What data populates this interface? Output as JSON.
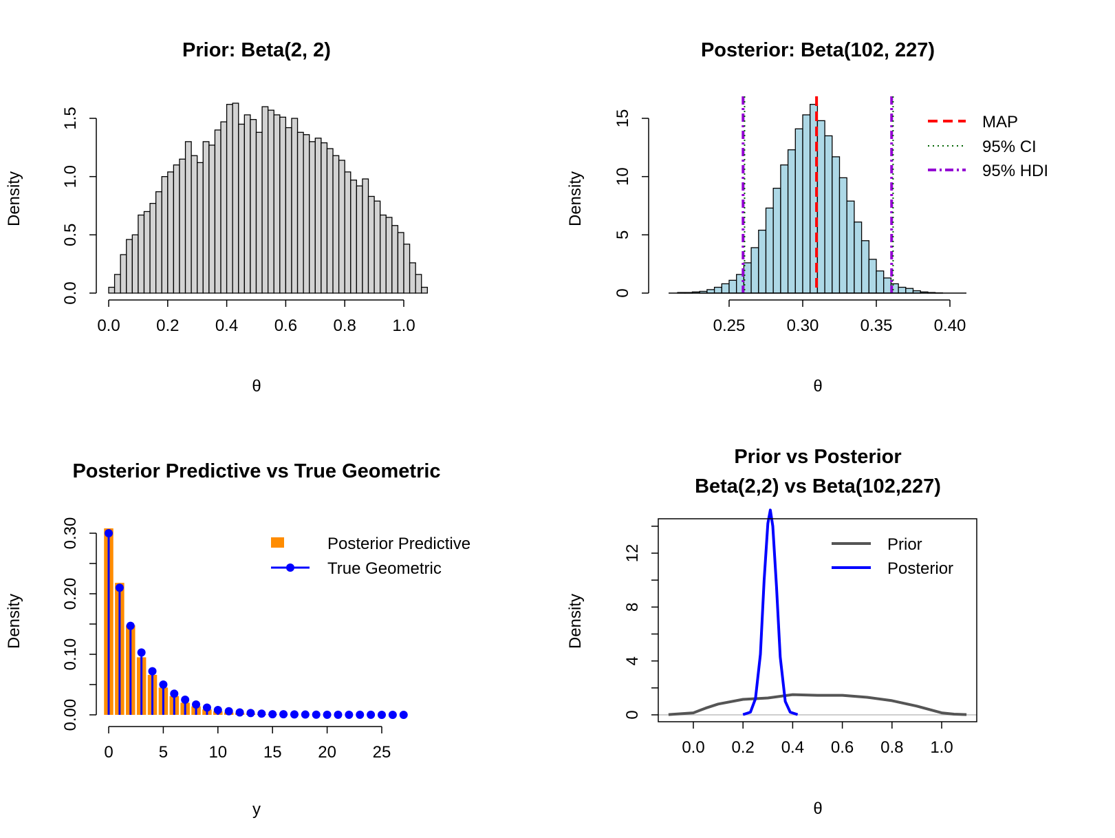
{
  "chart_data": [
    {
      "id": "prior",
      "type": "bar",
      "title": "Prior: Beta(2, 2)",
      "xlabel": "θ",
      "ylabel": "Density",
      "xlim": [
        0,
        1
      ],
      "ylim": [
        0,
        1.6
      ],
      "xticks": [
        "0.0",
        "0.2",
        "0.4",
        "0.6",
        "0.8",
        "1.0"
      ],
      "yticks": [
        "0.0",
        "0.5",
        "1.0",
        "1.5"
      ],
      "bar_color": "#d3d3d3",
      "bin_width": 0.02,
      "bin_start": 0,
      "values": [
        0.05,
        0.16,
        0.33,
        0.46,
        0.5,
        0.67,
        0.7,
        0.77,
        0.87,
        1.0,
        1.04,
        1.1,
        1.15,
        1.3,
        1.18,
        1.12,
        1.3,
        1.27,
        1.4,
        1.47,
        1.62,
        1.63,
        1.45,
        1.53,
        1.49,
        1.38,
        1.6,
        1.57,
        1.53,
        1.51,
        1.42,
        1.5,
        1.38,
        1.36,
        1.3,
        1.33,
        1.29,
        1.24,
        1.18,
        1.14,
        1.04,
        0.97,
        0.92,
        0.98,
        0.83,
        0.79,
        0.67,
        0.65,
        0.58,
        0.52,
        0.42,
        0.26,
        0.16,
        0.05
      ]
    },
    {
      "id": "posterior",
      "type": "bar",
      "title": "Posterior: Beta(102, 227)",
      "xlabel": "θ",
      "ylabel": "Density",
      "xlim": [
        0.22,
        0.41
      ],
      "ylim": [
        0,
        16.5
      ],
      "xticks": [
        "0.25",
        "0.30",
        "0.35",
        "0.40"
      ],
      "yticks": [
        "0",
        "5",
        "10",
        "15"
      ],
      "bar_color": "#add8e6",
      "bin_width": 0.005,
      "bin_start": 0.215,
      "values": [
        0.05,
        0.05,
        0.1,
        0.15,
        0.3,
        0.5,
        0.8,
        1.1,
        1.6,
        2.6,
        3.9,
        5.4,
        7.3,
        9.0,
        11.0,
        12.3,
        14.1,
        15.3,
        16.2,
        14.8,
        13.5,
        11.7,
        9.9,
        7.9,
        6.1,
        4.5,
        2.9,
        1.9,
        1.3,
        0.8,
        0.5,
        0.4,
        0.2,
        0.1,
        0.05,
        0.02
      ],
      "lines": [
        {
          "name": "MAP",
          "value": 0.3094,
          "color": "#ff0000",
          "style": "dashed"
        },
        {
          "name": "95% CI",
          "values": [
            0.2605,
            0.3614
          ],
          "color": "#006400",
          "style": "dotted"
        },
        {
          "name": "95% HDI",
          "values": [
            0.2595,
            0.3604
          ],
          "color": "#9400d3",
          "style": "dotdash"
        }
      ],
      "legend": {
        "position": "top-right",
        "entries": [
          "MAP",
          "95% CI",
          "95% HDI"
        ]
      }
    },
    {
      "id": "predictive",
      "type": "bar",
      "title": "Posterior Predictive vs True Geometric",
      "xlabel": "y",
      "ylabel": "Density",
      "xlim": [
        0,
        27
      ],
      "ylim": [
        0,
        0.3
      ],
      "xticks": [
        "0",
        "5",
        "10",
        "15",
        "20",
        "25"
      ],
      "yticks": [
        "0.00",
        "0.10",
        "0.20",
        "0.30"
      ],
      "x": [
        0,
        1,
        2,
        3,
        4,
        5,
        6,
        7,
        8,
        9,
        10,
        11,
        12,
        13,
        14,
        15,
        16,
        17,
        18,
        19,
        20,
        21,
        22,
        23,
        24,
        25,
        26,
        27
      ],
      "series": [
        {
          "name": "Posterior Predictive",
          "color": "#ff8c00",
          "values": [
            0.308,
            0.218,
            0.148,
            0.095,
            0.066,
            0.045,
            0.031,
            0.02,
            0.014,
            0.009,
            0.006,
            0.004,
            0.003,
            0.002,
            0.001,
            0.001,
            0.0005,
            0.0004,
            0.0003,
            0.0002,
            0.0002,
            0.0001,
            0.0001,
            0.0001,
            0.0001,
            0,
            0,
            0
          ]
        },
        {
          "name": "True Geometric",
          "color": "#0000ff",
          "values": [
            0.3,
            0.21,
            0.147,
            0.103,
            0.072,
            0.05,
            0.035,
            0.025,
            0.017,
            0.012,
            0.008,
            0.006,
            0.004,
            0.003,
            0.002,
            0.001,
            0.001,
            0.0007,
            0.0005,
            0.0003,
            0.0002,
            0.0002,
            0.0001,
            0.0001,
            0.0001,
            0,
            0,
            0
          ]
        }
      ],
      "legend": {
        "position": "top-right",
        "entries": [
          "Posterior Predictive",
          "True Geometric"
        ]
      }
    },
    {
      "id": "comparison",
      "type": "line",
      "title": "Prior vs Posterior\nBeta(2,2) vs Beta(102,227)",
      "title_lines": [
        "Prior vs Posterior",
        "Beta(2,2) vs Beta(102,227)"
      ],
      "xlabel": "θ",
      "ylabel": "Density",
      "xlim": [
        -0.15,
        1.13
      ],
      "ylim": [
        -0.5,
        14.5
      ],
      "xticks": [
        "0.0",
        "0.2",
        "0.4",
        "0.6",
        "0.8",
        "1.0"
      ],
      "yticks": [
        "0",
        "4",
        "8",
        "12"
      ],
      "series": [
        {
          "name": "Prior",
          "color": "#555555",
          "x": [
            -0.1,
            0.0,
            0.05,
            0.1,
            0.2,
            0.3,
            0.4,
            0.5,
            0.6,
            0.7,
            0.8,
            0.9,
            1.0,
            1.05,
            1.1
          ],
          "y": [
            0.02,
            0.15,
            0.5,
            0.8,
            1.15,
            1.25,
            1.5,
            1.45,
            1.45,
            1.3,
            1.05,
            0.65,
            0.15,
            0.05,
            0.02
          ]
        },
        {
          "name": "Posterior",
          "color": "#0000ff",
          "x": [
            0.2,
            0.23,
            0.25,
            0.27,
            0.285,
            0.3,
            0.31,
            0.32,
            0.335,
            0.35,
            0.37,
            0.39,
            0.42
          ],
          "y": [
            0.02,
            0.2,
            1.2,
            4.5,
            10.0,
            14.2,
            15.2,
            14.0,
            9.5,
            4.3,
            1.0,
            0.2,
            0.02
          ]
        }
      ],
      "legend": {
        "position": "top-right",
        "entries": [
          "Prior",
          "Posterior"
        ]
      }
    }
  ]
}
